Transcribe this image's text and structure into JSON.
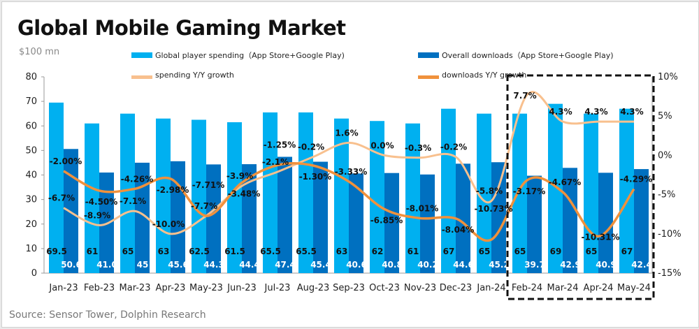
{
  "chart_data": {
    "type": "bar+line",
    "title": "Global Mobile Gaming Market",
    "unit_label": "$100 mn",
    "source": "Source: Sensor Tower, Dolphin Research",
    "categories": [
      "Jan-23",
      "Feb-23",
      "Mar-23",
      "Apr-23",
      "May-23",
      "Jun-23",
      "Jul-23",
      "Aug-23",
      "Sep-23",
      "Oct-23",
      "Nov-23",
      "Dec-23",
      "Jan-24",
      "Feb-24",
      "Mar-24",
      "Apr-24",
      "May-24"
    ],
    "series": [
      {
        "name": "Global player spending（App Store+Google Play)",
        "type": "bar",
        "axis": "left",
        "color": "#00b0f0",
        "values": [
          69.5,
          61,
          65,
          63,
          62.5,
          61.5,
          65.5,
          65.5,
          63,
          62,
          61,
          67,
          65,
          65,
          69,
          65,
          67
        ],
        "labels": [
          "69.5",
          "61",
          "65",
          "63",
          "62.5",
          "61.5",
          "65.5",
          "65.5",
          "63",
          "62",
          "61",
          "67",
          "65",
          "65",
          "69",
          "65",
          "67"
        ]
      },
      {
        "name": "Overall downloads（App Store+Google Play)",
        "type": "bar",
        "axis": "left",
        "color": "#0070c0",
        "values": [
          50.6,
          41.0,
          45,
          45.6,
          44.3,
          44.4,
          47.4,
          45.4,
          40.6,
          40.8,
          40.2,
          44.6,
          45.2,
          39.7,
          42.9,
          40.9,
          42.4
        ],
        "labels": [
          "50.6",
          "41.0",
          "45",
          "45.6",
          "44.3",
          "44.4",
          "47.4",
          "45.4",
          "40.6",
          "40.8",
          "40.2",
          "44.6",
          "45.2",
          "39.7",
          "42.9",
          "40.9",
          "42.4"
        ]
      },
      {
        "name": "spending Y/Y growth",
        "type": "line",
        "axis": "right",
        "color": "#f8c08e",
        "values": [
          -6.7,
          -8.9,
          -7.1,
          -10.0,
          -7.7,
          -3.9,
          -2.1,
          -0.2,
          1.6,
          0.0,
          -0.3,
          -0.2,
          -5.8,
          7.7,
          4.3,
          4.3,
          4.3
        ],
        "labels": [
          "-6.7%",
          "-8.9%",
          "-7.1%",
          "-10.0%",
          "-7.7%",
          "-3.9%",
          "-2.1%",
          "-0.2%",
          "1.6%",
          "0.0%",
          "-0.3%",
          "-0.2%",
          "-5.8%",
          "7.7%",
          "4.3%",
          "4.3%",
          "4.3%"
        ]
      },
      {
        "name": "downloads Y/Y growth",
        "type": "line",
        "axis": "right",
        "color": "#f0913c",
        "values": [
          -2.0,
          -4.5,
          -4.26,
          -2.98,
          -7.71,
          -3.48,
          -1.25,
          -1.3,
          -3.33,
          -6.85,
          -8.01,
          -8.04,
          -10.73,
          -3.17,
          -4.67,
          -10.31,
          -4.29
        ],
        "labels": [
          "-2.00%",
          "-4.50%",
          "-4.26%",
          "-2.98%",
          "-7.71%",
          "-3.48%",
          "-1.25%",
          "-1.30%",
          "-3.33%",
          "-6.85%",
          "-8.01%",
          "-8.04%",
          "-10.73%",
          "-3.17%",
          "-4.67%",
          "-10.31%",
          "-4.29%"
        ]
      }
    ],
    "left_axis": {
      "range": [
        0,
        80
      ],
      "ticks": [
        "0",
        "10",
        "20",
        "30",
        "40",
        "50",
        "60",
        "70",
        "80"
      ]
    },
    "right_axis": {
      "range": [
        -15,
        10
      ],
      "ticks": [
        "-15%",
        "-10%",
        "-5%",
        "0%",
        "5%",
        "10%"
      ]
    },
    "grid": false,
    "legend": "top",
    "highlight": {
      "type": "dashed-box",
      "from": "Feb-24",
      "to": "May-24"
    }
  }
}
